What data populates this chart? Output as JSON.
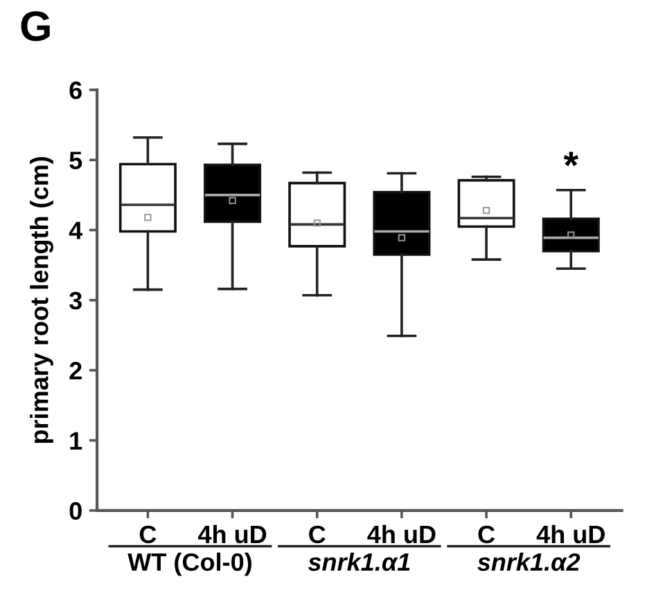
{
  "chart_data": {
    "type": "box",
    "title": "G",
    "ylabel": "primary root length (cm)",
    "categories": [
      "C",
      "4h uD",
      "C",
      "4h uD",
      "C",
      "4h uD"
    ],
    "colors": [
      "#ffffff",
      "#000000",
      "#ffffff",
      "#000000",
      "#ffffff",
      "#000000"
    ],
    "boxes": [
      {
        "low": 3.15,
        "q1": 3.98,
        "median": 4.36,
        "q3": 4.94,
        "high": 5.32,
        "mean": 4.18
      },
      {
        "low": 3.16,
        "q1": 4.12,
        "median": 4.5,
        "q3": 4.93,
        "high": 5.23,
        "mean": 4.42
      },
      {
        "low": 3.07,
        "q1": 3.77,
        "median": 4.08,
        "q3": 4.67,
        "high": 4.82,
        "mean": 4.1
      },
      {
        "low": 2.49,
        "q1": 3.65,
        "median": 3.98,
        "q3": 4.54,
        "high": 4.81,
        "mean": 3.89
      },
      {
        "low": 3.58,
        "q1": 4.05,
        "median": 4.17,
        "q3": 4.71,
        "high": 4.76,
        "mean": 4.28
      },
      {
        "low": 3.45,
        "q1": 3.7,
        "median": 3.89,
        "q3": 4.16,
        "high": 4.57,
        "mean": 3.93
      }
    ],
    "ylim": [
      0,
      6
    ],
    "yticks": [
      0,
      1,
      2,
      3,
      4,
      5,
      6
    ],
    "grid": false,
    "annotations": [
      "WT (Col-0)",
      "snrk1.α1",
      "snrk1.α2",
      "*"
    ]
  }
}
